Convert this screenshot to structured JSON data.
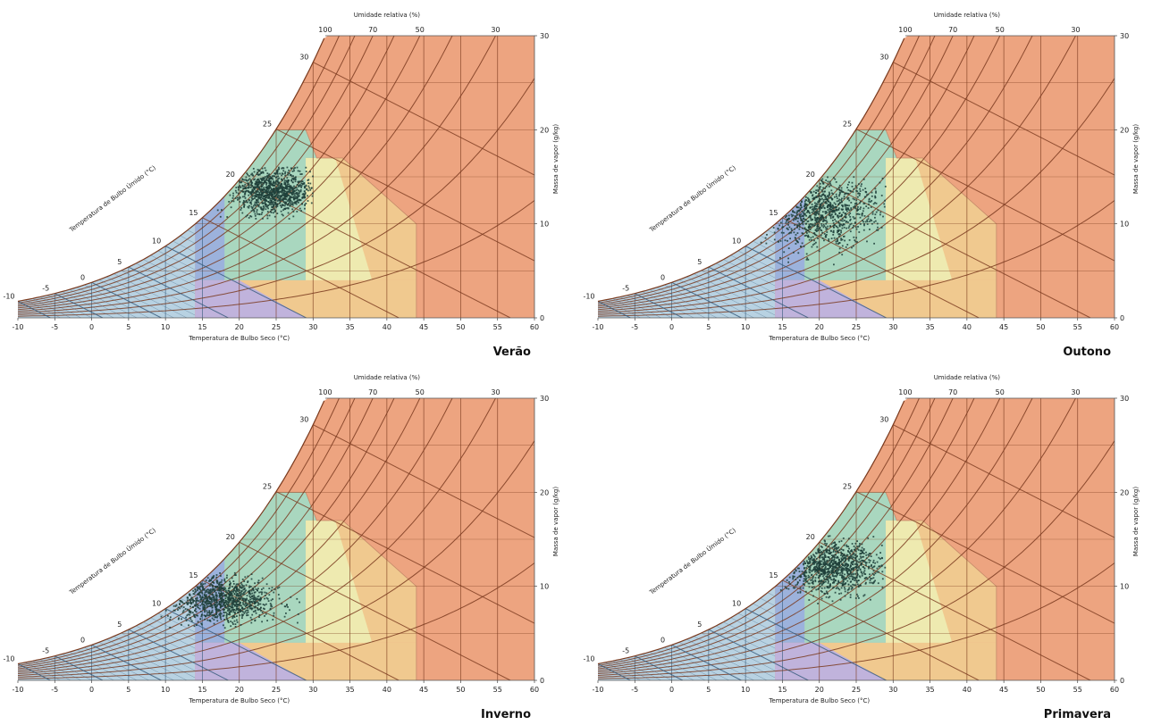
{
  "colors": {
    "background": "#ffffff",
    "hot_zone": "#eda480",
    "comfort_ventilation": "#a9d7bf",
    "thermal_mass": "#eeeab0",
    "evaporative": "#f0c98f",
    "cold_heating": "#9cb2dc",
    "humidify": "#c0b3dc",
    "cold_region": "#b8d2e2",
    "curve": "#7a3a1e",
    "blue_line": "#33597a",
    "points": "#1f3f3a"
  },
  "chart_data": [
    {
      "type": "scatter",
      "chart_kind": "psychrometric chart",
      "xlabel": "Temperatura de Bulbo Seco (°C)",
      "ylabel": "Massa de vapor (g/kg)",
      "wetbulb_label": "Temperatura de Bulbo Úmido (°C)",
      "rh_label": "Umidade relativa (%)",
      "season_label": "Verão",
      "xlim": [
        -10,
        60
      ],
      "ylim": [
        0,
        30
      ],
      "x_ticks": [
        "-10",
        "-5",
        "0",
        "5",
        "10",
        "15",
        "20",
        "25",
        "30",
        "35",
        "40",
        "45",
        "50",
        "55",
        "60"
      ],
      "y_ticks": [
        "0",
        "10",
        "20",
        "30"
      ],
      "rh_ticks": [
        "100",
        "70",
        "50",
        "30"
      ],
      "wb_ticks": [
        "-10",
        "-5",
        "0",
        "5",
        "10",
        "15",
        "20",
        "25",
        "30"
      ],
      "cloud": {
        "x_center": 24.5,
        "x_spread": 2.8,
        "y_center": 13.5,
        "y_spread": 1.2,
        "x_range": [
          17,
          30
        ],
        "y_range": [
          10.5,
          16
        ]
      }
    },
    {
      "type": "scatter",
      "chart_kind": "psychrometric chart",
      "xlabel": "Temperatura de Bulbo Seco (°C)",
      "ylabel": "Massa de vapor (g/kg)",
      "wetbulb_label": "Temperatura de Bulbo Úmido (°C)",
      "rh_label": "Umidade relativa (%)",
      "season_label": "Outono",
      "xlim": [
        -10,
        60
      ],
      "ylim": [
        0,
        30
      ],
      "x_ticks": [
        "-10",
        "-5",
        "0",
        "5",
        "10",
        "15",
        "20",
        "25",
        "30",
        "35",
        "40",
        "45",
        "50",
        "55",
        "60"
      ],
      "y_ticks": [
        "0",
        "10",
        "20",
        "30"
      ],
      "rh_ticks": [
        "100",
        "70",
        "50",
        "30"
      ],
      "wb_ticks": [
        "-10",
        "-5",
        "0",
        "5",
        "10",
        "15",
        "20",
        "25",
        "30"
      ],
      "cloud": {
        "x_center": 20,
        "x_spread": 4,
        "y_center": 11.5,
        "y_spread": 2,
        "x_range": [
          11,
          29
        ],
        "y_range": [
          5.5,
          15
        ]
      }
    },
    {
      "type": "scatter",
      "chart_kind": "psychrometric chart",
      "xlabel": "Temperatura de Bulbo Seco (°C)",
      "ylabel": "Massa de vapor (g/kg)",
      "wetbulb_label": "Temperatura de Bulbo Úmido (°C)",
      "rh_label": "Umidade relativa (%)",
      "season_label": "Inverno",
      "xlim": [
        -10,
        60
      ],
      "ylim": [
        0,
        30
      ],
      "x_ticks": [
        "-10",
        "-5",
        "0",
        "5",
        "10",
        "15",
        "20",
        "25",
        "30",
        "35",
        "40",
        "45",
        "50",
        "55",
        "60"
      ],
      "y_ticks": [
        "0",
        "10",
        "20",
        "30"
      ],
      "rh_ticks": [
        "100",
        "70",
        "50",
        "30"
      ],
      "wb_ticks": [
        "-10",
        "-5",
        "0",
        "5",
        "10",
        "15",
        "20",
        "25",
        "30"
      ],
      "cloud": {
        "x_center": 17.5,
        "x_spread": 3.5,
        "y_center": 8.5,
        "y_spread": 1.2,
        "x_range": [
          9,
          29
        ],
        "y_range": [
          5.5,
          11.5
        ]
      }
    },
    {
      "type": "scatter",
      "chart_kind": "psychrometric chart",
      "xlabel": "Temperatura de Bulbo Seco (°C)",
      "ylabel": "Massa de vapor (g/kg)",
      "wetbulb_label": "Temperatura de Bulbo Úmido (°C)",
      "rh_label": "Umidade relativa (%)",
      "season_label": "Primavera",
      "xlim": [
        -10,
        60
      ],
      "ylim": [
        0,
        30
      ],
      "x_ticks": [
        "-10",
        "-5",
        "0",
        "5",
        "10",
        "15",
        "20",
        "25",
        "30",
        "35",
        "40",
        "45",
        "50",
        "55",
        "60"
      ],
      "y_ticks": [
        "0",
        "10",
        "20",
        "30"
      ],
      "rh_ticks": [
        "100",
        "70",
        "50",
        "30"
      ],
      "wb_ticks": [
        "-10",
        "-5",
        "0",
        "5",
        "10",
        "15",
        "20",
        "25",
        "30"
      ],
      "cloud": {
        "x_center": 21.5,
        "x_spread": 3.5,
        "y_center": 12,
        "y_spread": 1.4,
        "x_range": [
          13,
          29
        ],
        "y_range": [
          8,
          15.5
        ]
      }
    }
  ]
}
